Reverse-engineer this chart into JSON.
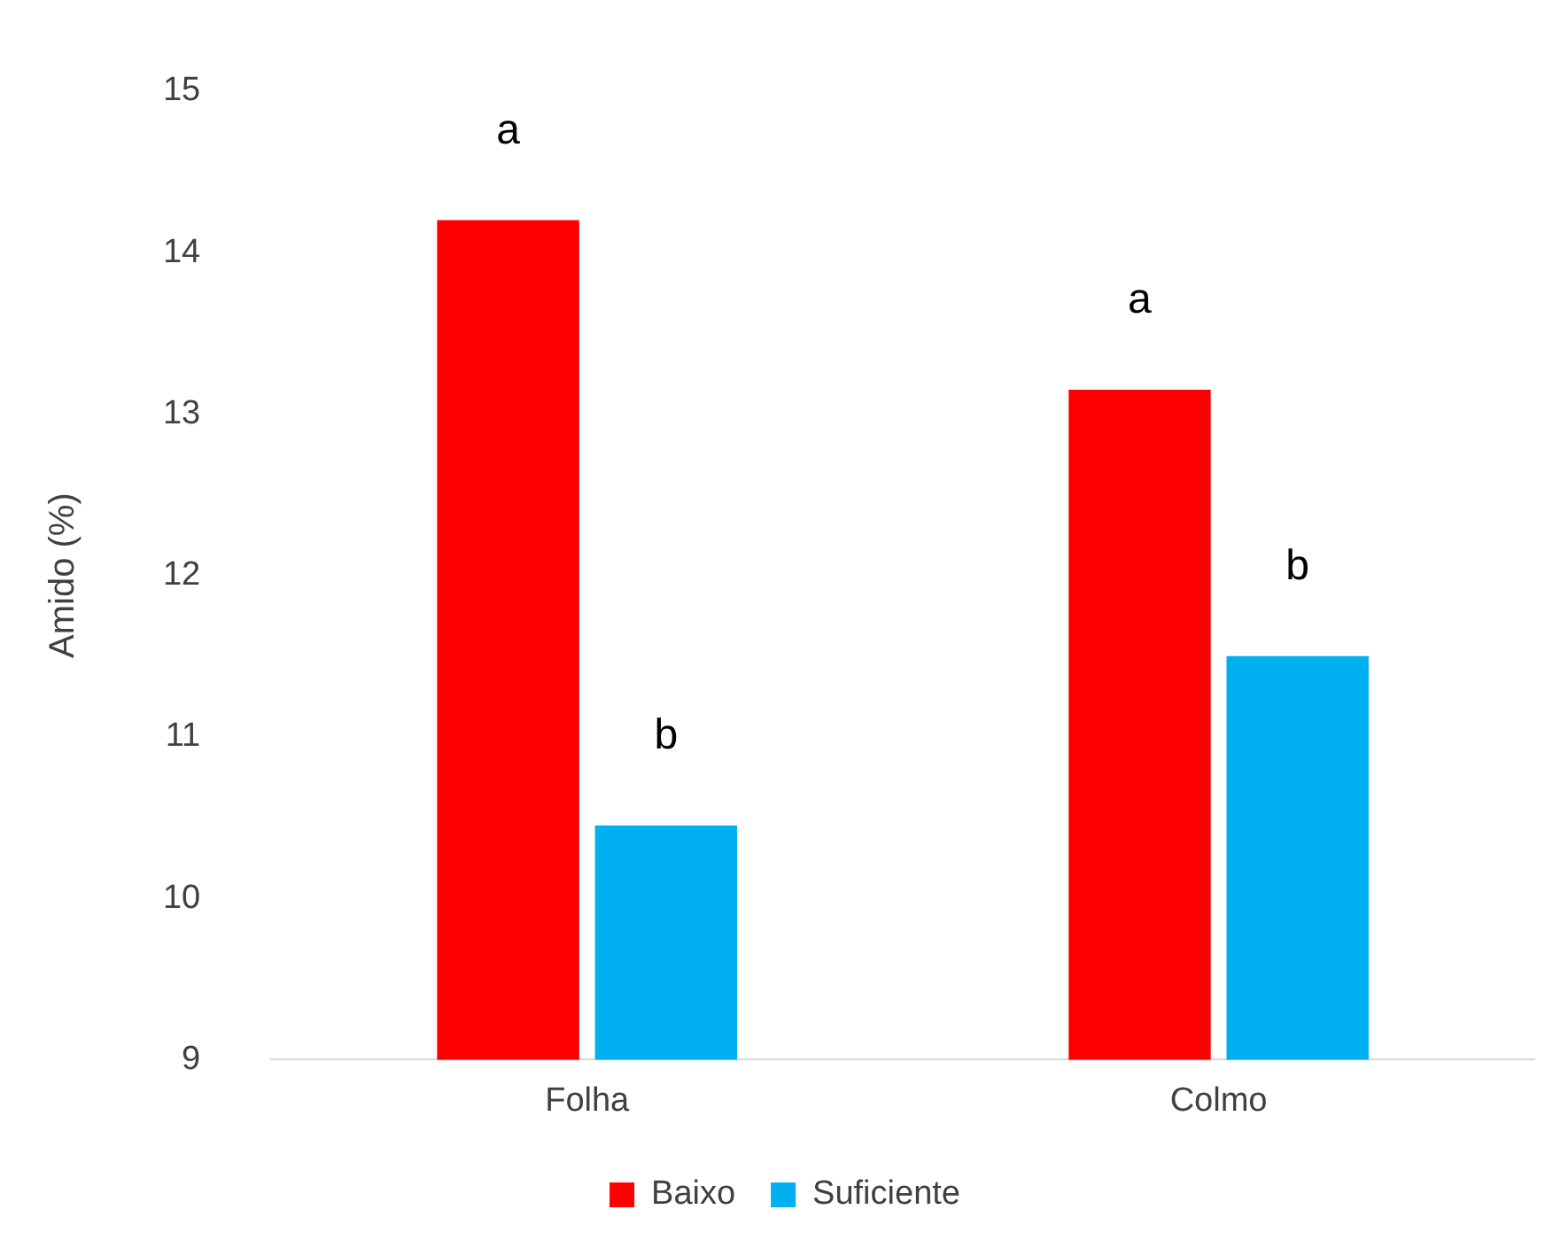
{
  "chart_data": {
    "type": "bar",
    "ylabel": "Amido (%)",
    "categories": [
      "Folha",
      "Colmo"
    ],
    "series": [
      {
        "name": "Baixo",
        "color": "#ff0000",
        "values": [
          14.2,
          13.15
        ],
        "value_labels": [
          "a",
          "a"
        ]
      },
      {
        "name": "Suficiente",
        "color": "#00b0f0",
        "values": [
          10.45,
          11.5
        ],
        "value_labels": [
          "b",
          "b"
        ]
      }
    ],
    "ylim": [
      9,
      15
    ],
    "yticks": [
      9,
      10,
      11,
      12,
      13,
      14,
      15
    ],
    "grid": false,
    "legend": "bottom"
  }
}
